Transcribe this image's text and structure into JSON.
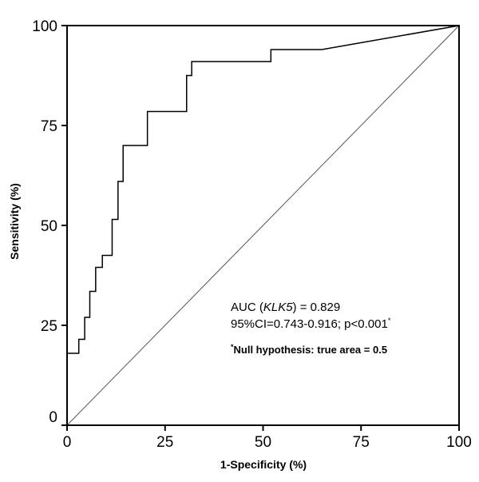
{
  "chart_data": {
    "type": "line",
    "xlabel": "1-Specificity (%)",
    "ylabel": "Sensitivity (%)",
    "xlim": [
      0,
      100
    ],
    "ylim": [
      0,
      100
    ],
    "x_ticks": [
      "0",
      "25",
      "50",
      "75",
      "100"
    ],
    "y_ticks": [
      "0",
      "25",
      "50",
      "75",
      "100"
    ],
    "grid": false,
    "series": [
      {
        "points": [
          [
            0,
            18
          ],
          [
            3,
            18
          ],
          [
            3,
            21.5
          ],
          [
            4.5,
            21.5
          ],
          [
            4.5,
            27
          ],
          [
            5.8,
            27
          ],
          [
            5.8,
            33.5
          ],
          [
            7.3,
            33.5
          ],
          [
            7.3,
            39.5
          ],
          [
            9,
            39.5
          ],
          [
            9,
            42.5
          ],
          [
            11.5,
            42.5
          ],
          [
            11.5,
            51.5
          ],
          [
            13,
            51.5
          ],
          [
            13,
            61
          ],
          [
            14.3,
            61
          ],
          [
            14.3,
            70
          ],
          [
            20.5,
            70
          ],
          [
            20.5,
            78.5
          ],
          [
            30.5,
            78.5
          ],
          [
            30.5,
            87.5
          ],
          [
            31.8,
            87.5
          ],
          [
            31.8,
            91
          ],
          [
            52,
            91
          ],
          [
            52,
            94
          ],
          [
            65,
            94
          ],
          [
            100,
            100
          ]
        ]
      },
      {
        "reference": true,
        "points": [
          [
            0,
            0
          ],
          [
            100,
            100
          ]
        ]
      }
    ],
    "annotations": {
      "auc_prefix": "AUC (",
      "auc_gene": "KLK5",
      "auc_suffix": ") = 0.829",
      "ci_line": "95%CI=0.743-0.916; p<0.001",
      "ci_sup": "*",
      "null_sup": "*",
      "null_line": "Null hypothesis: true area = 0.5"
    }
  }
}
